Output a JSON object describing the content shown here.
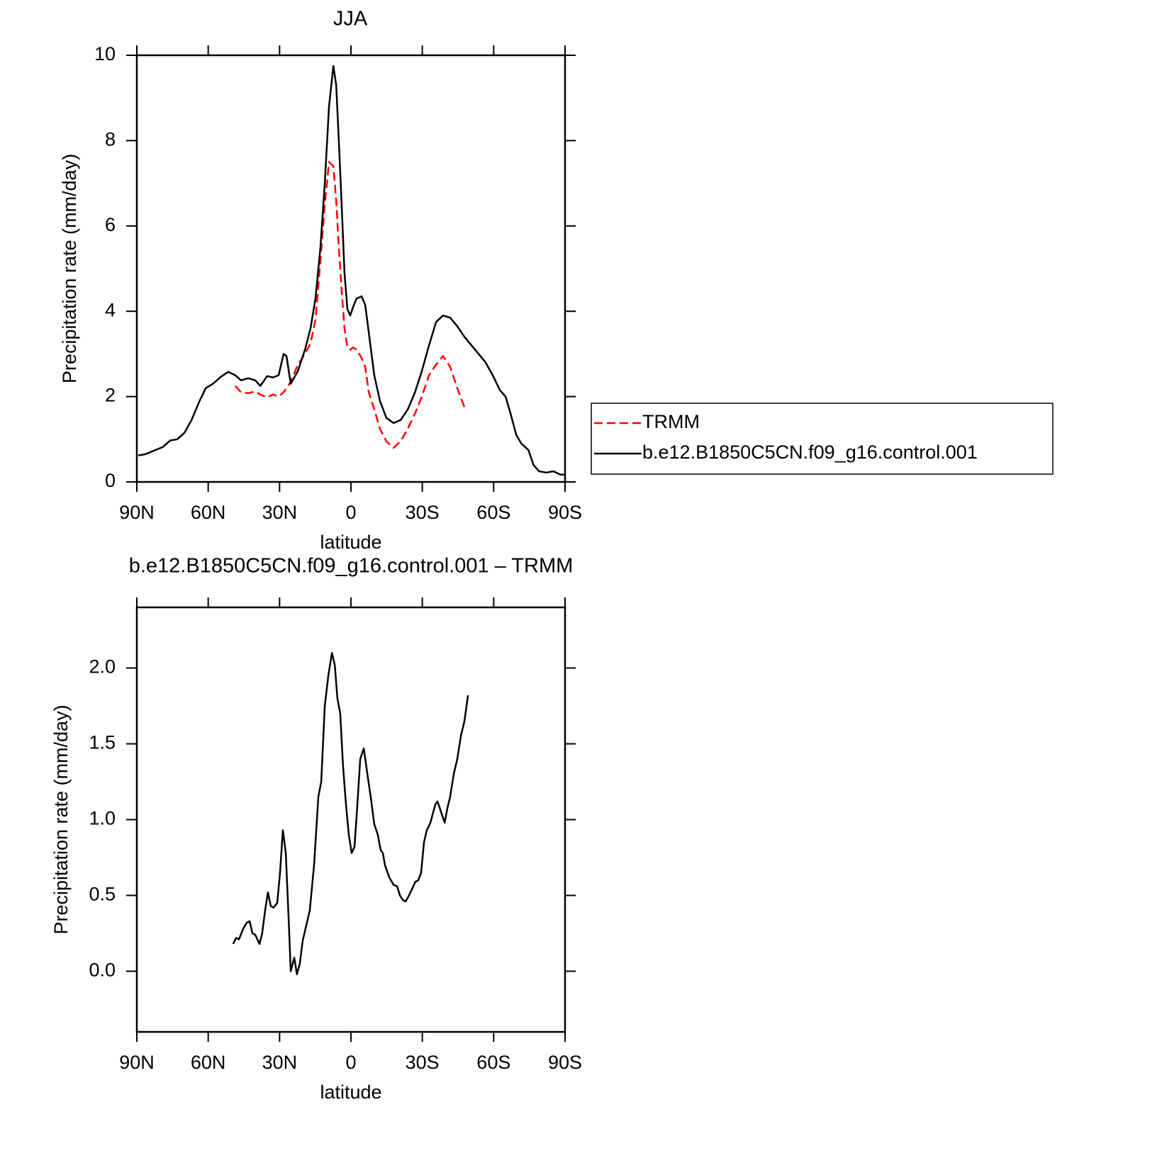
{
  "chart_data": [
    {
      "type": "line",
      "title": "JJA",
      "xlabel": "latitude",
      "ylabel": "Precipitation rate (mm/day)",
      "x": [
        89.4,
        86.4,
        83.4,
        79.0,
        76.0,
        73.0,
        70.0,
        67.0,
        64.0,
        61.0,
        58.0,
        55.0,
        51.6,
        48.6,
        46.2,
        43.2,
        40.2,
        38.1,
        35.2,
        32.8,
        30.4,
        28.3,
        27.1,
        25.3,
        22.3,
        19.3,
        17.0,
        14.9,
        12.8,
        11.0,
        9.2,
        7.4,
        6.2,
        5.1,
        3.9,
        2.7,
        1.5,
        0.3,
        -0.9,
        -2.4,
        -4.5,
        -6.0,
        -7.5,
        -9.8,
        -12.2,
        -14.9,
        -17.9,
        -20.9,
        -23.9,
        -26.9,
        -29.8,
        -32.8,
        -35.8,
        -38.7,
        -41.7,
        -44.7,
        -47.7,
        -50.7,
        -53.7,
        -56.6,
        -59.6,
        -62.6,
        -65.0,
        -67.1,
        -69.5,
        -71.6,
        -74.6,
        -76.7,
        -79.1,
        -82.1,
        -85.1,
        -88.1,
        -90
      ],
      "series": [
        {
          "name": "TRMM",
          "color": "#ff0000",
          "style": "dashed",
          "values": [
            null,
            null,
            null,
            null,
            null,
            null,
            null,
            null,
            null,
            null,
            null,
            null,
            null,
            2.25,
            2.1,
            2.08,
            2.12,
            2.05,
            1.98,
            2.05,
            2.0,
            2.1,
            2.2,
            2.35,
            2.75,
            3.0,
            3.25,
            3.8,
            5.2,
            6.5,
            7.5,
            7.4,
            6.6,
            5.5,
            4.5,
            3.6,
            3.15,
            3.1,
            3.15,
            3.1,
            2.9,
            2.7,
            2.1,
            1.7,
            1.25,
            0.95,
            0.8,
            0.95,
            1.25,
            1.6,
            2.0,
            2.5,
            2.75,
            2.95,
            2.7,
            2.2,
            1.75,
            null,
            null,
            null,
            null,
            null,
            null,
            null,
            null,
            null,
            null,
            null,
            null,
            null,
            null,
            null,
            null
          ]
        },
        {
          "name": "b.e12.B1850C5CN.f09_g16.control.001",
          "color": "#000000",
          "style": "solid",
          "values": [
            0.62,
            0.65,
            0.72,
            0.82,
            0.97,
            1.0,
            1.15,
            1.45,
            1.85,
            2.2,
            2.3,
            2.45,
            2.58,
            2.5,
            2.38,
            2.43,
            2.38,
            2.25,
            2.48,
            2.45,
            2.5,
            3.0,
            2.95,
            2.3,
            2.6,
            3.1,
            3.6,
            4.3,
            5.5,
            7.0,
            8.8,
            9.75,
            9.3,
            8.0,
            6.5,
            4.9,
            4.05,
            3.9,
            4.1,
            4.3,
            4.35,
            4.15,
            3.5,
            2.5,
            1.9,
            1.5,
            1.38,
            1.45,
            1.7,
            2.1,
            2.6,
            3.2,
            3.75,
            3.9,
            3.85,
            3.65,
            3.4,
            3.2,
            3.0,
            2.8,
            2.5,
            2.15,
            2.0,
            1.6,
            1.1,
            0.9,
            0.75,
            0.4,
            0.25,
            0.22,
            0.25,
            0.17,
            0.17
          ]
        }
      ],
      "xlim": [
        90,
        -90
      ],
      "xticks": [
        {
          "value": 90,
          "label": "90N"
        },
        {
          "value": 60,
          "label": "60N"
        },
        {
          "value": 30,
          "label": "30N"
        },
        0,
        {
          "value": -30,
          "label": "30S"
        },
        {
          "value": -60,
          "label": "60S"
        },
        {
          "value": -90,
          "label": "90S"
        }
      ],
      "ylim": [
        0,
        10
      ],
      "yticks": [
        0,
        2,
        4,
        6,
        8,
        10
      ],
      "legend": "right"
    },
    {
      "type": "line",
      "title": "b.e12.B1850C5CN.f09_g16.control.001 – TRMM",
      "xlabel": "latitude",
      "ylabel": "Precipitation rate (mm/day)",
      "x": [
        49.5,
        48.3,
        47.1,
        45.3,
        43.8,
        42.6,
        41.4,
        40.2,
        38.4,
        37.3,
        36.1,
        34.9,
        33.7,
        32.5,
        31.0,
        29.8,
        28.6,
        27.4,
        26.2,
        25.3,
        23.8,
        22.7,
        21.5,
        20.3,
        19.1,
        17.3,
        15.5,
        13.7,
        12.5,
        11.0,
        9.5,
        8.0,
        6.8,
        5.7,
        4.5,
        3.3,
        2.1,
        0.9,
        -0.3,
        -1.5,
        -2.7,
        -3.9,
        -5.4,
        -6.9,
        -8.3,
        -9.8,
        -11.3,
        -12.5,
        -13.4,
        -14.3,
        -16.1,
        -17.9,
        -19.4,
        -20.6,
        -21.8,
        -23.0,
        -24.4,
        -25.9,
        -27.1,
        -28.3,
        -29.5,
        -30.7,
        -31.9,
        -33.4,
        -34.6,
        -35.5,
        -36.4,
        -37.9,
        -39.4,
        -40.6,
        -41.7,
        -43.2,
        -44.7,
        -46.2,
        -47.7,
        -49.2
      ],
      "series": [
        {
          "color": "#000000",
          "style": "solid",
          "values": [
            0.18,
            0.22,
            0.21,
            0.28,
            0.32,
            0.33,
            0.25,
            0.24,
            0.18,
            0.25,
            0.4,
            0.52,
            0.43,
            0.42,
            0.45,
            0.65,
            0.93,
            0.78,
            0.35,
            0.0,
            0.09,
            -0.02,
            0.05,
            0.2,
            0.28,
            0.4,
            0.7,
            1.15,
            1.25,
            1.75,
            1.95,
            2.1,
            2.02,
            1.8,
            1.7,
            1.35,
            1.1,
            0.9,
            0.78,
            0.82,
            1.1,
            1.4,
            1.47,
            1.3,
            1.15,
            0.97,
            0.9,
            0.8,
            0.78,
            0.7,
            0.62,
            0.57,
            0.56,
            0.5,
            0.47,
            0.46,
            0.5,
            0.55,
            0.59,
            0.6,
            0.65,
            0.85,
            0.93,
            0.98,
            1.05,
            1.1,
            1.12,
            1.05,
            0.98,
            1.08,
            1.15,
            1.3,
            1.4,
            1.55,
            1.65,
            1.82
          ]
        }
      ],
      "xlim": [
        90,
        -90
      ],
      "xticks": [
        {
          "value": 90,
          "label": "90N"
        },
        {
          "value": 60,
          "label": "60N"
        },
        {
          "value": 30,
          "label": "30N"
        },
        0,
        {
          "value": -30,
          "label": "30S"
        },
        {
          "value": -60,
          "label": "60S"
        },
        {
          "value": -90,
          "label": "90S"
        }
      ],
      "ylim": [
        -0.4,
        2.4
      ],
      "yticks": [
        {
          "value": 0,
          "label": "0.0"
        },
        0.5,
        {
          "value": 1,
          "label": "1.0"
        },
        1.5,
        {
          "value": 2,
          "label": "2.0"
        }
      ]
    }
  ]
}
